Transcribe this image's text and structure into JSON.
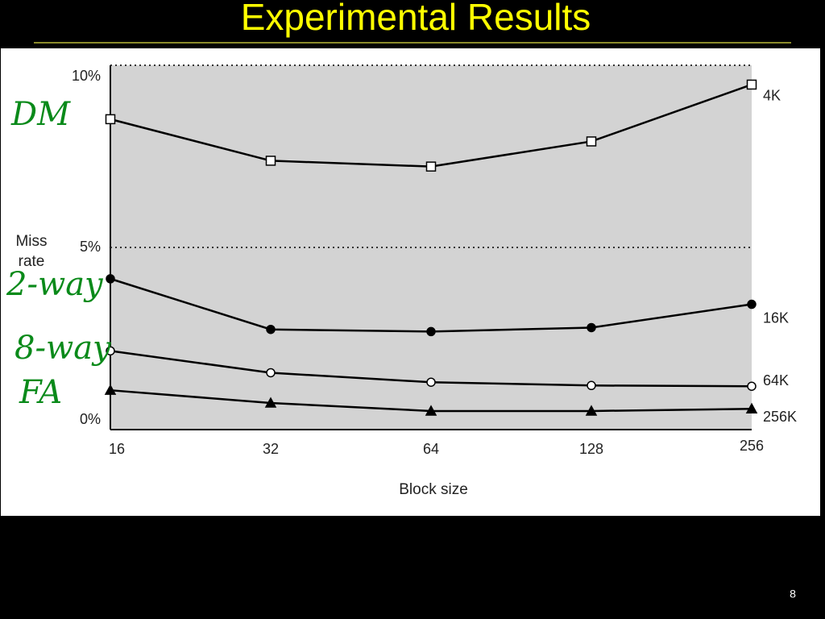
{
  "slide_title": "Experimental Results",
  "page_number": "8",
  "annotations": [
    "DM",
    "2-way",
    "8-way",
    "FA"
  ],
  "chart_data": {
    "type": "line",
    "x_label": "Block size",
    "y_label": "Miss rate",
    "categories": [
      "16",
      "32",
      "64",
      "128",
      "256"
    ],
    "ylim": [
      0,
      10
    ],
    "yticks": [
      {
        "value": 0,
        "label": "0%"
      },
      {
        "value": 5,
        "label": "5%"
      },
      {
        "value": 10,
        "label": "10%"
      }
    ],
    "grid": true,
    "series": [
      {
        "name": "4K",
        "color": "#000000",
        "marker": "open-square",
        "values": [
          8.52,
          7.38,
          7.22,
          7.91,
          9.47
        ]
      },
      {
        "name": "16K",
        "color": "#000000",
        "marker": "filled-circle",
        "values": [
          4.14,
          2.75,
          2.69,
          2.8,
          3.44
        ]
      },
      {
        "name": "64K",
        "color": "#000000",
        "marker": "open-circle",
        "values": [
          2.16,
          1.56,
          1.3,
          1.21,
          1.19
        ]
      },
      {
        "name": "256K",
        "color": "#000000",
        "marker": "filled-triangle",
        "values": [
          1.08,
          0.73,
          0.51,
          0.51,
          0.57
        ]
      }
    ]
  }
}
